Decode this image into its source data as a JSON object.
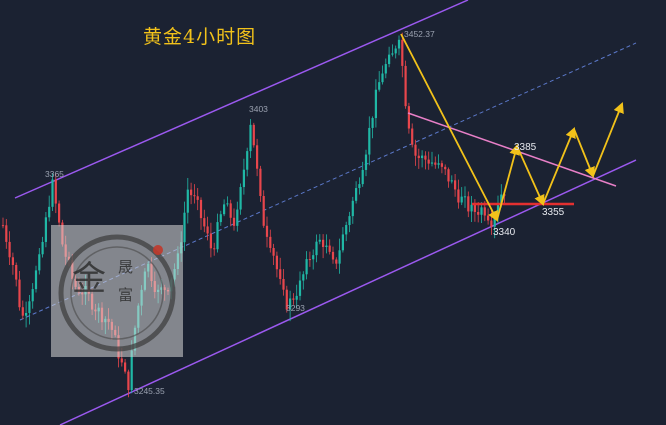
{
  "chart_data": {
    "type": "candlestick",
    "title": "黄金4小时图",
    "annotations": {
      "swing_low": "3245.35",
      "left_high": "3365",
      "mid_high": "3403",
      "mid_low": "3293",
      "top": "3452.37",
      "proj_high": "3385",
      "proj_low": "3340",
      "support": "3355"
    },
    "price_range": [
      3200,
      3480
    ],
    "colors": {
      "background": "#1b2232",
      "up": "#20b8a6",
      "down": "#e8464c",
      "channel": "#9b59ef",
      "midline": "#5b78c9",
      "projection": "#f2c21a",
      "trendline": "#e77fc7",
      "support": "#e43030"
    },
    "watermark": {
      "chars": [
        "金",
        "晟",
        "富"
      ]
    }
  }
}
